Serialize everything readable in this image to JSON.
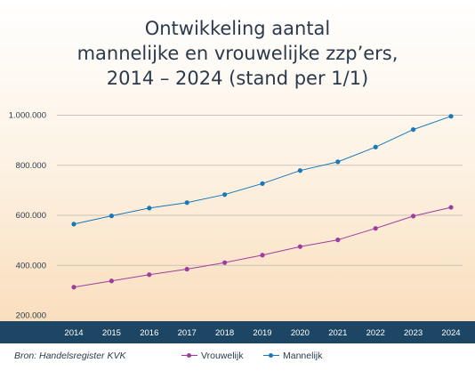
{
  "title_lines": [
    "Ontwikkeling aantal",
    "mannelijke en vrouwelijke zzp’ers,",
    "2014 – 2024 (stand per 1/1)"
  ],
  "source": "Bron: Handelsregister KVK",
  "colors": {
    "vrouwelijk": "#9e3d9e",
    "mannelijk": "#1878b8",
    "axis_bar": "#1c4663",
    "grid": "#c8c3b9"
  },
  "chart_data": {
    "type": "line",
    "title": "Ontwikkeling aantal mannelijke en vrouwelijke zzp’ers, 2014 – 2024 (stand per 1/1)",
    "xlabel": "",
    "ylabel": "",
    "categories": [
      "2014",
      "2015",
      "2016",
      "2017",
      "2018",
      "2019",
      "2020",
      "2021",
      "2022",
      "2023",
      "2024"
    ],
    "ylim": [
      200000,
      1000000
    ],
    "yticks": [
      200000,
      400000,
      600000,
      800000,
      1000000
    ],
    "ytick_labels": [
      "200.000",
      "400.000",
      "600.000",
      "800.000",
      "1.000.000"
    ],
    "grid": true,
    "legend_position": "bottom",
    "series": [
      {
        "name": "Vrouwelijk",
        "values": [
          311000,
          336000,
          361000,
          383000,
          409000,
          439000,
          473000,
          500000,
          546000,
          595000,
          630000
        ]
      },
      {
        "name": "Mannelijk",
        "values": [
          563000,
          596000,
          627000,
          649000,
          681000,
          725000,
          777000,
          812000,
          871000,
          941000,
          994000
        ]
      }
    ]
  }
}
